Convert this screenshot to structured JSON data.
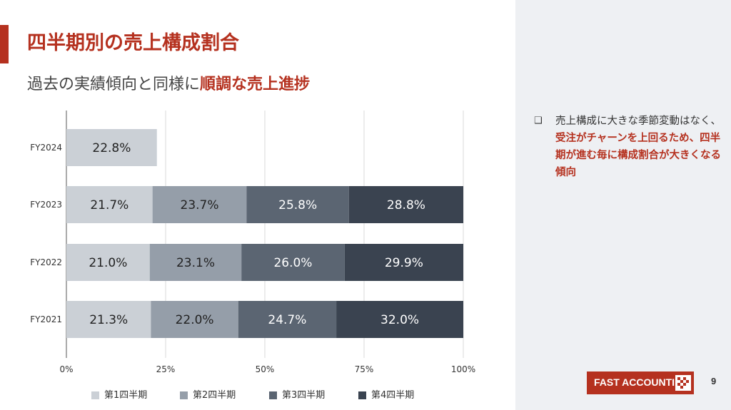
{
  "title": "四半期別の売上構成割合",
  "subtitle": {
    "text": "過去の実績傾向と同様に",
    "highlight": "順調な売上進捗"
  },
  "note": {
    "bullet": "❑",
    "text": "売上構成に大きな季節変動はなく、",
    "highlight": "受注がチャーンを上回るため、四半期が進む毎に構成割合が大きくなる傾向"
  },
  "logo": {
    "text": "FAST ACCOUNTING",
    "icon": "pixel-logo-icon"
  },
  "page_number": "9",
  "colors": {
    "accent": "#b5311f",
    "q1": "#cbd0d6",
    "q2": "#959ea9",
    "q3": "#5b6572",
    "q4": "#3a4350"
  },
  "chart_data": {
    "type": "bar",
    "orientation": "horizontal",
    "stacked": true,
    "categories": [
      "FY2024",
      "FY2023",
      "FY2022",
      "FY2021"
    ],
    "series": [
      {
        "name": "第1四半期",
        "values": [
          22.8,
          21.7,
          21.0,
          21.3
        ]
      },
      {
        "name": "第2四半期",
        "values": [
          null,
          23.7,
          23.1,
          22.0
        ]
      },
      {
        "name": "第3四半期",
        "values": [
          null,
          25.8,
          26.0,
          24.7
        ]
      },
      {
        "name": "第4四半期",
        "values": [
          null,
          28.8,
          29.9,
          32.0
        ]
      }
    ],
    "data_labels": [
      [
        "22.8%",
        "",
        "",
        ""
      ],
      [
        "21.7%",
        "23.7%",
        "25.8%",
        "28.8%"
      ],
      [
        "21.0%",
        "23.1%",
        "26.0%",
        "29.9%"
      ],
      [
        "21.3%",
        "22.0%",
        "24.7%",
        "32.0%"
      ]
    ],
    "xticks": [
      "0%",
      "25%",
      "50%",
      "75%",
      "100%"
    ],
    "xlim": [
      0,
      100
    ],
    "grid": true,
    "legend": "bottom"
  }
}
